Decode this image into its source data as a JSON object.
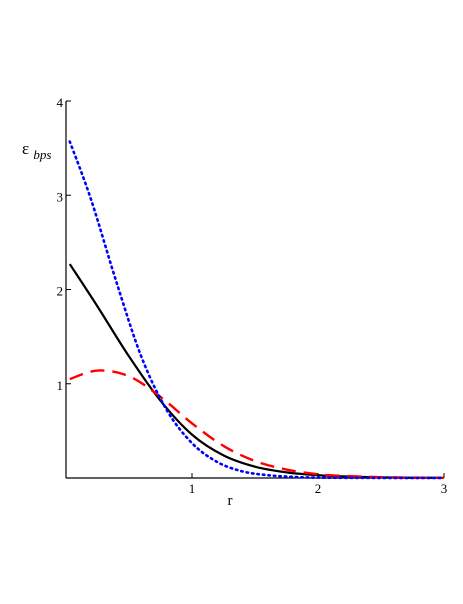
{
  "chart_data": {
    "type": "line",
    "title": "",
    "xlabel": "r",
    "ylabel_symbol": "ε",
    "ylabel_subscript": "bps",
    "xlim": [
      0.0,
      3.0
    ],
    "ylim": [
      0,
      4
    ],
    "xticks": [
      1,
      2,
      3
    ],
    "yticks": [
      1,
      2,
      3,
      4
    ],
    "grid": false,
    "legend": "none",
    "series": [
      {
        "color": "#000000",
        "dash": "solid",
        "x": [
          0.03,
          0.25,
          0.5,
          0.75,
          1.0,
          1.25,
          1.5,
          1.75,
          2.0,
          2.25,
          2.5,
          2.75,
          3.0
        ],
        "y": [
          2.27,
          1.82,
          1.29,
          0.82,
          0.46,
          0.24,
          0.12,
          0.06,
          0.03,
          0.015,
          0.007,
          0.003,
          0.0015
        ]
      },
      {
        "color": "#ff0000",
        "dash": "dashed",
        "x": [
          0.03,
          0.25,
          0.5,
          0.75,
          1.0,
          1.25,
          1.5,
          1.75,
          2.0,
          2.25,
          2.5,
          2.75,
          3.0
        ],
        "y": [
          1.05,
          1.14,
          1.08,
          0.86,
          0.58,
          0.34,
          0.18,
          0.09,
          0.04,
          0.02,
          0.009,
          0.004,
          0.002
        ]
      },
      {
        "color": "#0000ff",
        "dash": "dotted",
        "x": [
          0.03,
          0.2,
          0.4,
          0.6,
          0.8,
          1.0,
          1.2,
          1.4,
          1.6,
          1.8,
          2.0,
          2.5,
          3.0
        ],
        "y": [
          3.57,
          2.95,
          2.08,
          1.28,
          0.72,
          0.37,
          0.17,
          0.07,
          0.03,
          0.012,
          0.004,
          0.001,
          0.0002
        ]
      }
    ]
  }
}
